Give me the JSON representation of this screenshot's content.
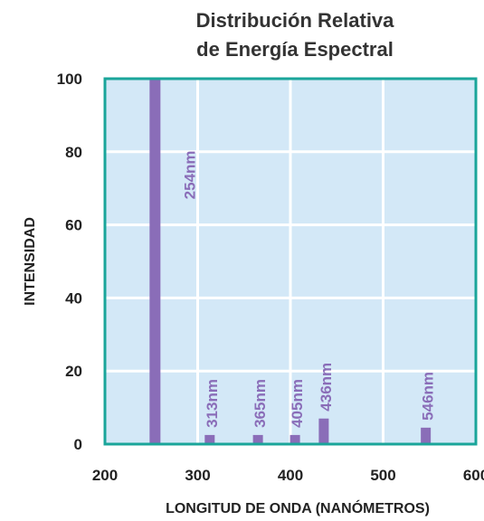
{
  "chart_data": {
    "type": "bar",
    "title_lines": [
      "Distribución Relativa",
      "de Energía Espectral"
    ],
    "xlabel": "LONGITUD DE ONDA (NANÓMETROS)",
    "ylabel": "INTENSIDAD",
    "xlim": [
      200,
      600
    ],
    "ylim": [
      0,
      100
    ],
    "x_ticks": [
      "200",
      "300",
      "400",
      "500",
      "600"
    ],
    "y_ticks": [
      "0",
      "20",
      "40",
      "60",
      "80",
      "100"
    ],
    "grid": true,
    "bars": [
      {
        "x": 254,
        "value": 100,
        "label": "254nm"
      },
      {
        "x": 313,
        "value": 2.5,
        "label": "313nm"
      },
      {
        "x": 365,
        "value": 2.5,
        "label": "365nm"
      },
      {
        "x": 405,
        "value": 2.5,
        "label": "405nm"
      },
      {
        "x": 436,
        "value": 7,
        "label": "436nm"
      },
      {
        "x": 546,
        "value": 4.5,
        "label": "546nm"
      }
    ],
    "colors": {
      "plot_background": "#d3e8f7",
      "plot_border": "#1aa59a",
      "bar": "#8a6db8",
      "grid": "#ffffff"
    }
  }
}
